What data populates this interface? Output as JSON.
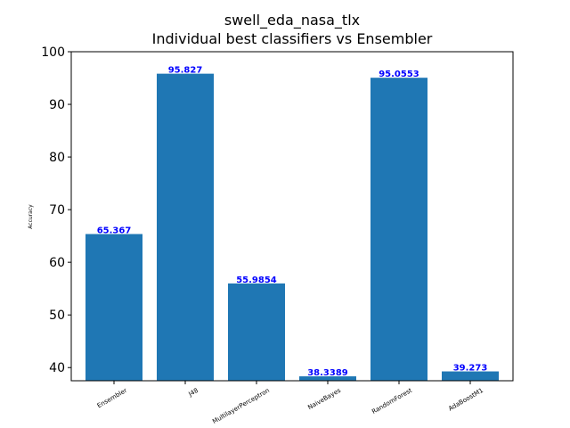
{
  "chart_data": {
    "type": "bar",
    "title": "swell_eda_nasa_tlx",
    "subtitle": "Individual best classifiers vs Ensembler",
    "xlabel": "",
    "ylabel": "Accuracy",
    "categories": [
      "Ensembler",
      "J48",
      "MultilayerPerceptron",
      "NaiveBayes",
      "RandomForest",
      "AdaBoostM1"
    ],
    "values": [
      65.367,
      95.827,
      55.9854,
      38.3389,
      95.0553,
      39.273
    ],
    "value_labels": [
      "65.367",
      "95.827",
      "55.9854",
      "38.3389",
      "95.0553",
      "39.273"
    ],
    "ylim": [
      37.5,
      100
    ],
    "yticks": [
      40,
      50,
      60,
      70,
      80,
      90,
      100
    ],
    "ytick_labels": [
      "40",
      "50",
      "60",
      "70",
      "80",
      "90",
      "100"
    ],
    "grid": false,
    "colors": {
      "bar": "#1f77b4",
      "data_label": "#0000ff",
      "axis": "#000000"
    }
  }
}
